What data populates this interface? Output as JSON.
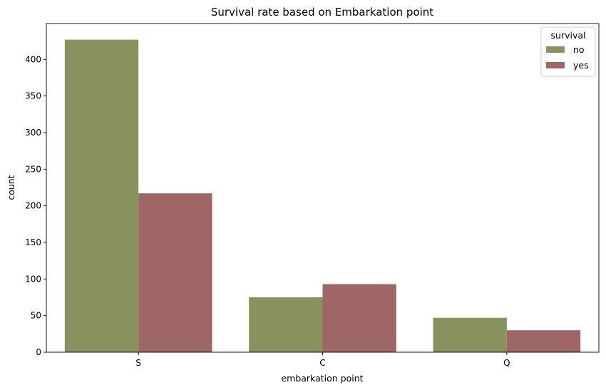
{
  "chart_data": {
    "type": "bar",
    "title": "Survival rate based on Embarkation point",
    "xlabel": "embarkation point",
    "ylabel": "count",
    "categories": [
      "S",
      "C",
      "Q"
    ],
    "series": [
      {
        "name": "no",
        "color": "#87925F",
        "values": [
          427,
          75,
          47
        ]
      },
      {
        "name": "yes",
        "color": "#9E6665",
        "values": [
          217,
          93,
          30
        ]
      }
    ],
    "ylim": [
      0,
      449
    ],
    "yticks": [
      0,
      50,
      100,
      150,
      200,
      250,
      300,
      350,
      400
    ],
    "grid": false,
    "legend": {
      "title": "survival",
      "placement": "top-right"
    }
  }
}
